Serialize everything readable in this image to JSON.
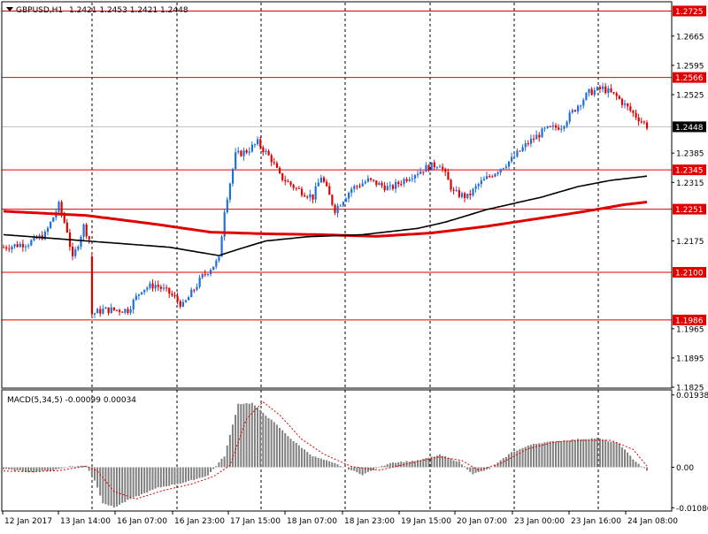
{
  "header": {
    "symbol": "GBPUSD,H1",
    "ohlc": "1.2421 1.2453 1.2421 1.2448"
  },
  "macd_header": {
    "label": "MACD(5,34,5) -0.00099 0.00034"
  },
  "colors": {
    "bull": "#1e6fd9",
    "bear": "#e00000",
    "level_line": "#e00000",
    "ma_fast": "#000000",
    "ma_slow": "#e00000",
    "macd_hist": "#808080",
    "macd_signal": "#e00000",
    "grid": "#000000"
  },
  "chart_data": [
    {
      "type": "candlestick",
      "title": "GBPUSD,H1",
      "ylim": [
        1.1825,
        1.2745
      ],
      "yticks": [
        "1.2665",
        "1.2595",
        "1.2525",
        "1.2385",
        "1.2315",
        "1.2175",
        "1.1965",
        "1.1895",
        "1.1825"
      ],
      "xticks": [
        "12 Jan 2017",
        "13 Jan 14:00",
        "16 Jan 07:00",
        "16 Jan 23:00",
        "17 Jan 15:00",
        "18 Jan 07:00",
        "18 Jan 23:00",
        "19 Jan 15:00",
        "20 Jan 07:00",
        "23 Jan 00:00",
        "23 Jan 16:00",
        "24 Jan 08:00"
      ],
      "levels": [
        {
          "label": "1.2725",
          "value": 1.2725
        },
        {
          "label": "1.2566",
          "value": 1.2566
        },
        {
          "label": "1.2345",
          "value": 1.2345
        },
        {
          "label": "1.2251",
          "value": 1.2251
        },
        {
          "label": "1.2100",
          "value": 1.21
        },
        {
          "label": "1.1986",
          "value": 1.1986
        }
      ],
      "current_price": {
        "label": "1.2448",
        "value": 1.2448
      },
      "close_path": [
        [
          0,
          1.216
        ],
        [
          9,
          1.217
        ],
        [
          15,
          1.219
        ],
        [
          20,
          1.226
        ],
        [
          23,
          1.22
        ],
        [
          25,
          1.213
        ],
        [
          29,
          1.221
        ],
        [
          31,
          1.218
        ],
        [
          32,
          1.2
        ],
        [
          36,
          1.201
        ],
        [
          45,
          1.201
        ],
        [
          50,
          1.206
        ],
        [
          55,
          1.207
        ],
        [
          60,
          1.205
        ],
        [
          65,
          1.202
        ],
        [
          72,
          1.209
        ],
        [
          78,
          1.213
        ],
        [
          80,
          1.225
        ],
        [
          84,
          1.238
        ],
        [
          88,
          1.239
        ],
        [
          92,
          1.241
        ],
        [
          97,
          1.237
        ],
        [
          100,
          1.233
        ],
        [
          106,
          1.23
        ],
        [
          112,
          1.228
        ],
        [
          115,
          1.233
        ],
        [
          120,
          1.225
        ],
        [
          126,
          1.23
        ],
        [
          132,
          1.232
        ],
        [
          140,
          1.23
        ],
        [
          147,
          1.233
        ],
        [
          153,
          1.235
        ],
        [
          158,
          1.236
        ],
        [
          163,
          1.229
        ],
        [
          168,
          1.228
        ],
        [
          172,
          1.231
        ],
        [
          178,
          1.234
        ],
        [
          184,
          1.237
        ],
        [
          190,
          1.241
        ],
        [
          196,
          1.244
        ],
        [
          202,
          1.245
        ],
        [
          208,
          1.25
        ],
        [
          212,
          1.253
        ],
        [
          217,
          1.254
        ],
        [
          222,
          1.252
        ],
        [
          228,
          1.248
        ],
        [
          233,
          1.245
        ]
      ],
      "ma_fast": [
        [
          0,
          1.219
        ],
        [
          20,
          1.218
        ],
        [
          40,
          1.217
        ],
        [
          60,
          1.216
        ],
        [
          78,
          1.214
        ],
        [
          85,
          1.2155
        ],
        [
          95,
          1.2175
        ],
        [
          110,
          1.2185
        ],
        [
          130,
          1.219
        ],
        [
          150,
          1.2205
        ],
        [
          160,
          1.222
        ],
        [
          175,
          1.225
        ],
        [
          195,
          1.228
        ],
        [
          208,
          1.2305
        ],
        [
          220,
          1.232
        ],
        [
          233,
          1.233
        ]
      ],
      "ma_slow": [
        [
          0,
          1.2246
        ],
        [
          30,
          1.2236
        ],
        [
          55,
          1.2215
        ],
        [
          75,
          1.2196
        ],
        [
          95,
          1.2192
        ],
        [
          115,
          1.219
        ],
        [
          135,
          1.2186
        ],
        [
          155,
          1.2194
        ],
        [
          175,
          1.221
        ],
        [
          195,
          1.223
        ],
        [
          210,
          1.2245
        ],
        [
          225,
          1.2262
        ],
        [
          233,
          1.2268
        ]
      ]
    },
    {
      "type": "bar",
      "title": "MACD(5,34,5)",
      "ylim": [
        -0.0115,
        0.0205
      ],
      "yticks": [
        "0.01938",
        "0.00",
        "-0.01086"
      ],
      "hist_path": [
        [
          0,
          -0.0005
        ],
        [
          10,
          -0.0013
        ],
        [
          18,
          -0.0008
        ],
        [
          24,
          0.0002
        ],
        [
          30,
          0.0004
        ],
        [
          33,
          -0.0035
        ],
        [
          36,
          -0.0095
        ],
        [
          40,
          -0.0108
        ],
        [
          46,
          -0.0085
        ],
        [
          56,
          -0.0055
        ],
        [
          66,
          -0.004
        ],
        [
          74,
          -0.0022
        ],
        [
          80,
          0.003
        ],
        [
          85,
          0.017
        ],
        [
          90,
          0.0172
        ],
        [
          98,
          0.012
        ],
        [
          105,
          0.007
        ],
        [
          112,
          0.003
        ],
        [
          120,
          0.001
        ],
        [
          130,
          -0.002
        ],
        [
          140,
          0.0012
        ],
        [
          150,
          0.0018
        ],
        [
          158,
          0.0033
        ],
        [
          165,
          0.0015
        ],
        [
          170,
          -0.0018
        ],
        [
          176,
          -0.0005
        ],
        [
          184,
          0.004
        ],
        [
          192,
          0.0063
        ],
        [
          200,
          0.007
        ],
        [
          208,
          0.0075
        ],
        [
          215,
          0.0078
        ],
        [
          223,
          0.0063
        ],
        [
          228,
          0.0022
        ],
        [
          233,
          -0.00099
        ]
      ],
      "signal_path": [
        [
          0,
          -0.001
        ],
        [
          10,
          -0.0012
        ],
        [
          20,
          -0.0009
        ],
        [
          30,
          0.0003
        ],
        [
          34,
          -0.001
        ],
        [
          40,
          -0.0065
        ],
        [
          48,
          -0.0085
        ],
        [
          58,
          -0.0062
        ],
        [
          68,
          -0.0045
        ],
        [
          76,
          -0.0025
        ],
        [
          82,
          0.0005
        ],
        [
          88,
          0.013
        ],
        [
          94,
          0.0175
        ],
        [
          100,
          0.014
        ],
        [
          108,
          0.0075
        ],
        [
          116,
          0.0035
        ],
        [
          126,
          0.0002
        ],
        [
          136,
          -0.0008
        ],
        [
          148,
          0.0012
        ],
        [
          158,
          0.0028
        ],
        [
          166,
          0.0018
        ],
        [
          172,
          -0.0008
        ],
        [
          180,
          0.001
        ],
        [
          190,
          0.005
        ],
        [
          200,
          0.0068
        ],
        [
          210,
          0.0072
        ],
        [
          220,
          0.0072
        ],
        [
          228,
          0.0048
        ],
        [
          233,
          0.00034
        ]
      ]
    }
  ]
}
